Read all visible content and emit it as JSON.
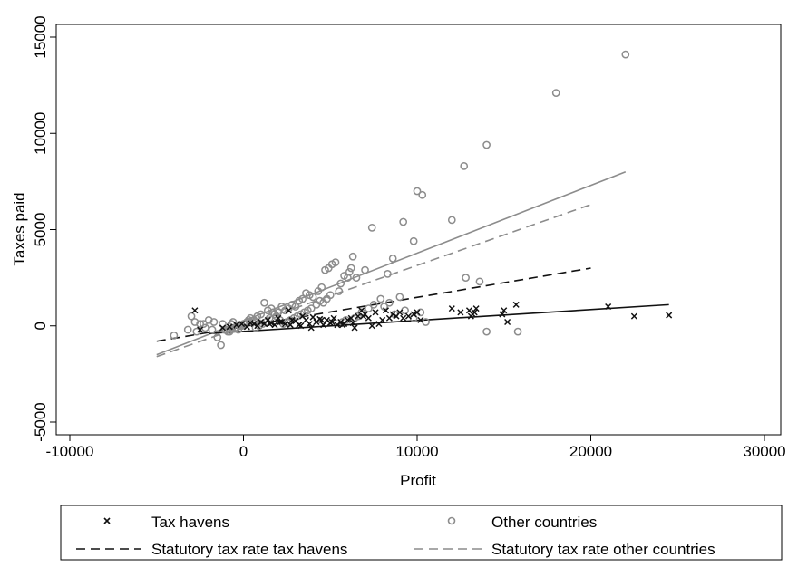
{
  "chart_data": {
    "type": "scatter",
    "xlabel": "Profit",
    "ylabel": "Taxes paid",
    "xlim": [
      -10000,
      30000
    ],
    "ylim": [
      -5000,
      15000
    ],
    "x_ticks": [
      "-10000",
      "0",
      "10000",
      "20000",
      "30000"
    ],
    "y_ticks": [
      "-5000",
      "0",
      "5000",
      "10000",
      "15000"
    ],
    "grid": false,
    "legend_position": "bottom",
    "colors": {
      "tax_havens": "#111111",
      "other": "#8c8c8c"
    },
    "series": [
      {
        "name": "Tax havens",
        "marker": "x",
        "x": [
          -2800,
          -2500,
          -1200,
          -800,
          -400,
          -100,
          200,
          400,
          600,
          800,
          1000,
          1200,
          1400,
          1600,
          1800,
          2000,
          2200,
          2400,
          2600,
          2800,
          3000,
          3200,
          3400,
          3600,
          3800,
          4000,
          4200,
          4400,
          4600,
          4800,
          5000,
          5200,
          5400,
          5600,
          5800,
          6000,
          6200,
          6400,
          6600,
          6800,
          7000,
          7200,
          7400,
          7600,
          7800,
          8000,
          8200,
          8400,
          8600,
          8800,
          9000,
          9200,
          9500,
          9800,
          10000,
          10200,
          12000,
          12500,
          13000,
          13100,
          13200,
          13300,
          13400,
          14900,
          15000,
          15200,
          15700,
          21000,
          22500,
          24500,
          1500,
          2100,
          2700,
          3300,
          3900,
          4500,
          5100,
          5700,
          6300,
          6900
        ],
        "y": [
          800,
          -200,
          -100,
          -50,
          50,
          100,
          -50,
          150,
          100,
          0,
          200,
          100,
          300,
          150,
          50,
          400,
          200,
          100,
          800,
          300,
          250,
          50,
          500,
          300,
          100,
          450,
          200,
          350,
          50,
          300,
          150,
          400,
          50,
          200,
          100,
          300,
          400,
          -100,
          500,
          800,
          600,
          400,
          0,
          700,
          100,
          300,
          800,
          400,
          600,
          500,
          700,
          400,
          500,
          600,
          700,
          300,
          900,
          700,
          800,
          500,
          600,
          700,
          900,
          600,
          800,
          200,
          1100,
          1000,
          500,
          550,
          100,
          200,
          50,
          0,
          -100,
          300,
          200,
          50,
          150,
          500
        ]
      },
      {
        "name": "Other countries",
        "marker": "o",
        "x": [
          22000,
          18000,
          14000,
          12700,
          12000,
          10300,
          10000,
          9800,
          9200,
          7400,
          6300,
          6200,
          6100,
          6000,
          5800,
          5600,
          5300,
          5100,
          4900,
          4700,
          4500,
          4300,
          4000,
          3800,
          3600,
          3400,
          3200,
          3000,
          2800,
          2600,
          2400,
          2200,
          2000,
          1800,
          1600,
          1400,
          1200,
          1000,
          800,
          600,
          400,
          200,
          0,
          -200,
          -400,
          -600,
          -800,
          -1000,
          -1200,
          -1500,
          -1800,
          -2000,
          -2200,
          -2500,
          -2800,
          -3000,
          -4000,
          -1300,
          12800,
          13600,
          15800,
          14000,
          10500,
          10200,
          9800,
          8700,
          8300,
          8600,
          7000,
          6500,
          5500,
          5000,
          4800,
          4600,
          4400,
          4200,
          3900,
          3700,
          3500,
          3300,
          3100,
          2900,
          2700,
          2500,
          2300,
          2100,
          1900,
          1700,
          1500,
          1300,
          1100,
          900,
          700,
          500,
          300,
          100,
          -100,
          -300,
          -500,
          -700,
          -900,
          -1100,
          -1700,
          -2300,
          -2700,
          -3200,
          8100,
          8400,
          9000,
          9300,
          7900,
          7500,
          7200,
          6800,
          6600,
          6400,
          5900,
          5700
        ],
        "y": [
          14100,
          12100,
          9400,
          8300,
          5500,
          6800,
          7000,
          4400,
          5400,
          5100,
          3600,
          3000,
          2800,
          2500,
          2600,
          2200,
          3300,
          3200,
          3000,
          2900,
          2000,
          1800,
          1500,
          1600,
          1700,
          1400,
          1300,
          1000,
          1100,
          900,
          800,
          1000,
          700,
          600,
          900,
          800,
          1200,
          600,
          500,
          300,
          400,
          200,
          100,
          0,
          -100,
          200,
          -300,
          -200,
          100,
          -600,
          -200,
          300,
          -100,
          100,
          200,
          500,
          -500,
          -1000,
          2500,
          2300,
          -300,
          -300,
          200,
          700,
          400,
          600,
          2700,
          3500,
          2900,
          2500,
          1800,
          1600,
          1400,
          1200,
          1300,
          1100,
          900,
          800,
          700,
          600,
          500,
          400,
          300,
          200,
          100,
          300,
          500,
          700,
          400,
          200,
          100,
          0,
          -100,
          200,
          300,
          100,
          0,
          -200,
          -100,
          100,
          -300,
          -200,
          200,
          100,
          -300,
          -200,
          1000,
          1200,
          1500,
          800,
          1400,
          1100,
          900,
          700,
          500,
          400,
          300,
          200
        ]
      }
    ],
    "lines": [
      {
        "name": "Statutory tax rate tax havens",
        "style": "dashed",
        "color": "#111111",
        "x": [
          -5000,
          20000
        ],
        "y": [
          -800,
          3000
        ]
      },
      {
        "name": "Statutory tax rate other countries",
        "style": "dashed",
        "color": "#8c8c8c",
        "x": [
          -5000,
          20000
        ],
        "y": [
          -1600,
          6300
        ]
      },
      {
        "name": "",
        "style": "solid",
        "color": "#8c8c8c",
        "x": [
          -5000,
          22000
        ],
        "y": [
          -1500,
          8000
        ]
      },
      {
        "name": "",
        "style": "solid",
        "color": "#111111",
        "x": [
          -2000,
          24500
        ],
        "y": [
          -400,
          1100
        ]
      }
    ],
    "legend": [
      {
        "label": "Tax havens",
        "symbol": "x"
      },
      {
        "label": "Other countries",
        "symbol": "o"
      },
      {
        "label": "Statutory tax rate tax havens",
        "symbol": "dash-dark"
      },
      {
        "label": "Statutory tax rate other countries",
        "symbol": "dash-gray"
      }
    ]
  }
}
